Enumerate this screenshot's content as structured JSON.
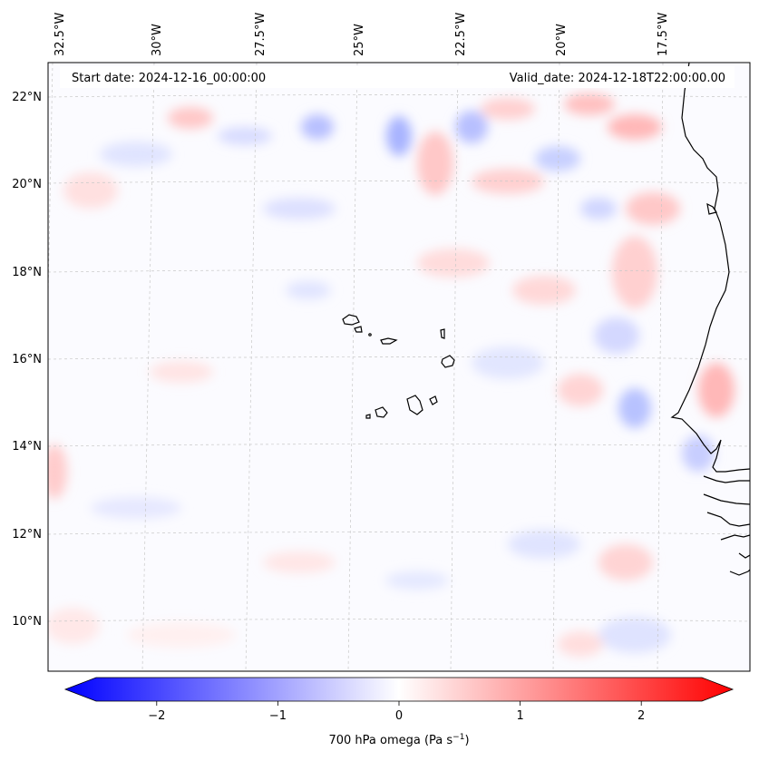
{
  "map": {
    "start_label": "Start date: 2024-12-16_00:00:00",
    "valid_label": "Valid_date: 2024-12-18T22:00:00.00",
    "lon_labels": [
      "32.5°W",
      "30°W",
      "27.5°W",
      "25°W",
      "22.5°W",
      "20°W",
      "17.5°W"
    ],
    "lat_labels": [
      "22°N",
      "20°N",
      "18°N",
      "16°N",
      "14°N",
      "12°N",
      "10°N"
    ],
    "colors": {
      "negative": "#0000ff",
      "positive": "#ff0000",
      "neutral": "#ffffff",
      "coast": "#000000",
      "grid": "#c8c8c8"
    }
  },
  "colorbar": {
    "label_text": "700 hPa omega (Pa s",
    "label_exponent": "−1",
    "label_close": ")",
    "range": [
      -2.6,
      2.6
    ],
    "ticks": [
      {
        "value": -2,
        "label": "−2"
      },
      {
        "value": -1,
        "label": "−1"
      },
      {
        "value": 0,
        "label": "0"
      },
      {
        "value": 1,
        "label": "1"
      },
      {
        "value": 2,
        "label": "2"
      }
    ]
  }
}
